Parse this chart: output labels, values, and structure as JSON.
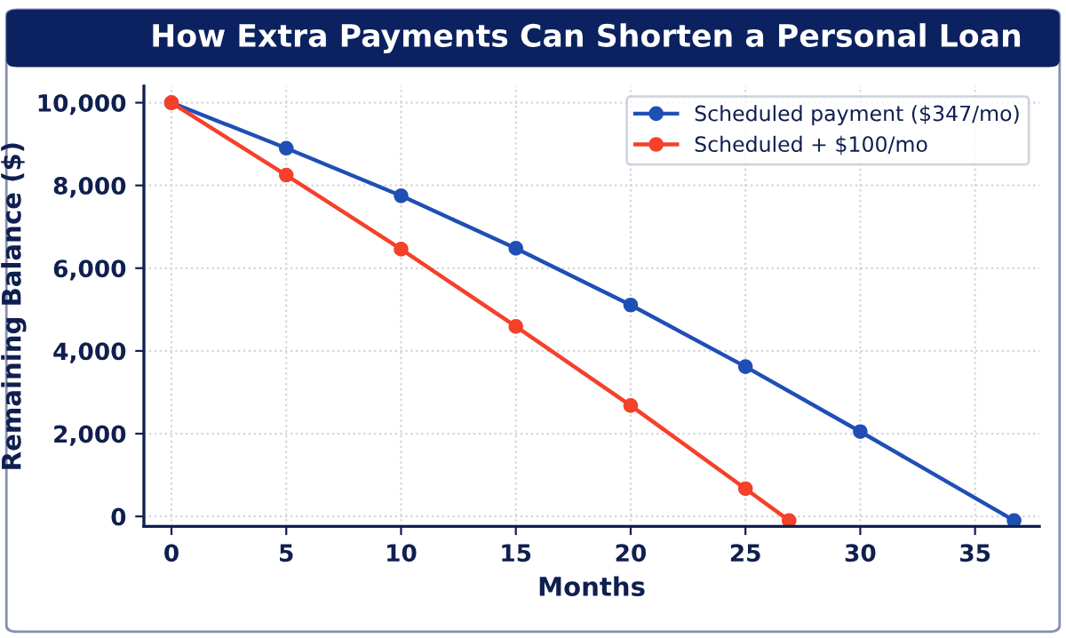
{
  "chart_data": {
    "type": "line",
    "title": "How Extra Payments Can Shorten a Personal Loan",
    "xlabel": "Months",
    "ylabel": "Remaining Balance ($)",
    "series": [
      {
        "name": "Scheduled payment ($347/mo)",
        "color": "#1f4fb5",
        "x": [
          0,
          5,
          10,
          15,
          20,
          25,
          30,
          36.7
        ],
        "values": [
          10000,
          8900,
          7750,
          6480,
          5110,
          3620,
          2050,
          -100
        ]
      },
      {
        "name": "Scheduled + $100/mo",
        "color": "#f5402a",
        "x": [
          0,
          5,
          10,
          15,
          20,
          25,
          26.9
        ],
        "values": [
          10000,
          8250,
          6460,
          4590,
          2680,
          670,
          -100
        ]
      }
    ],
    "xlim": [
      -1.2,
      37.8
    ],
    "xticks": [
      0,
      5,
      10,
      15,
      20,
      25,
      30,
      35
    ],
    "ylim": [
      -240,
      10400
    ],
    "yticks": [
      0,
      {
        "value": 2000,
        "label": "2,000"
      },
      {
        "value": 4000,
        "label": "4,000"
      },
      {
        "value": 6000,
        "label": "6,000"
      },
      {
        "value": 8000,
        "label": "8,000"
      },
      {
        "value": 10000,
        "label": "10,000"
      }
    ],
    "grid": true,
    "legend": "top right",
    "marker": "circle",
    "line_style": "solid"
  }
}
